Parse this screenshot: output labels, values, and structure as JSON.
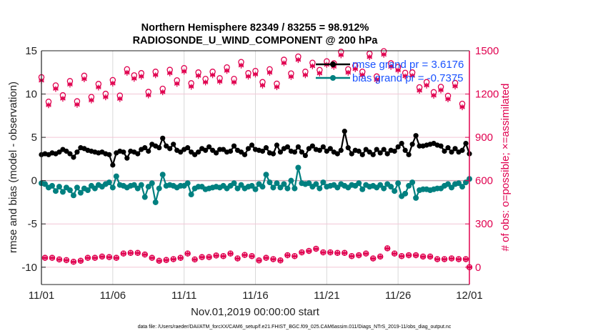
{
  "chart_data": {
    "type": "line",
    "title": [
      "Northern Hemisphere 82349 / 83255 = 98.912%",
      "RADIOSONDE_U_WIND_COMPONENT @ 200 hPa"
    ],
    "xlabel": "Nov.01,2019 00:00:00 start",
    "ylabel": "rmse and bias (model - observation)",
    "ylabel_right": "# of obs: o=possible; ×=assimilated",
    "x_start": "2019-11-01 00:00",
    "time_step": "6 hours",
    "x_ticks": [
      "11/01",
      "11/06",
      "11/11",
      "11/16",
      "11/21",
      "11/26",
      "12/01"
    ],
    "ylim": [
      -12,
      15
    ],
    "y_ticks": [
      -10,
      -5,
      0,
      5,
      10,
      15
    ],
    "ylim_right": [
      -120,
      1500
    ],
    "y_ticks_right": [
      0,
      300,
      600,
      900,
      1200,
      1500
    ],
    "grid": true,
    "legend_placement": "top-right",
    "colors": {
      "rmse": "#000000",
      "bias": "#008080",
      "obs": "#e0004f",
      "legend_text": "#1a53ff",
      "right_axis": "#e0004f"
    },
    "series": [
      {
        "name": "rmse grand pr = 3.6176",
        "axis": "left",
        "marker": "star",
        "values": [
          3.0,
          3.1,
          3.0,
          3.2,
          3.1,
          3.3,
          3.6,
          3.4,
          3.1,
          2.7,
          3.3,
          3.8,
          3.7,
          3.5,
          3.4,
          3.3,
          3.2,
          3.3,
          3.1,
          3.0,
          1.8,
          3.2,
          3.4,
          3.3,
          2.6,
          3.4,
          3.3,
          3.1,
          3.6,
          3.8,
          3.4,
          4.2,
          4.0,
          3.8,
          4.9,
          4.0,
          3.7,
          4.2,
          3.5,
          3.3,
          3.6,
          3.8,
          3.3,
          3.0,
          3.3,
          3.7,
          3.5,
          3.9,
          3.5,
          3.2,
          3.6,
          3.6,
          3.3,
          3.4,
          4.0,
          3.5,
          3.3,
          3.0,
          3.7,
          4.1,
          3.6,
          3.5,
          3.4,
          3.8,
          3.2,
          3.1,
          4.1,
          3.3,
          3.7,
          3.9,
          3.4,
          3.3,
          3.9,
          3.3,
          2.9,
          3.7,
          4.0,
          3.6,
          3.5,
          3.9,
          3.4,
          3.7,
          3.3,
          3.1,
          3.5,
          5.7,
          3.8,
          3.1,
          3.5,
          3.4,
          3.0,
          3.6,
          3.3,
          3.0,
          3.6,
          3.2,
          3.6,
          3.1,
          3.5,
          3.4,
          3.9,
          4.3,
          3.5,
          3.0,
          4.2,
          5.2,
          4.0,
          4.0,
          4.1,
          4.2,
          4.3,
          4.1,
          4.0,
          3.4,
          3.8,
          3.3,
          3.7,
          3.3,
          3.5,
          4.3,
          3.1
        ]
      },
      {
        "name": "bias grand pr = -0.7375",
        "axis": "left",
        "marker": "dot",
        "values": [
          -0.3,
          -0.4,
          -0.8,
          -0.6,
          -1.2,
          -0.7,
          -1.3,
          -0.8,
          -1.1,
          -1.7,
          -0.8,
          -1.4,
          -0.9,
          -1.1,
          -0.6,
          -0.9,
          -0.5,
          -0.7,
          -0.4,
          -0.2,
          -0.8,
          0.5,
          -0.5,
          -0.6,
          -0.8,
          -0.6,
          -0.5,
          -0.9,
          -0.5,
          -1.9,
          -0.7,
          -0.3,
          -2.5,
          -0.9,
          0.7,
          -0.6,
          -0.5,
          -0.6,
          -0.8,
          -0.6,
          -0.6,
          -0.3,
          -1.6,
          -0.9,
          -0.7,
          -0.7,
          -1.0,
          -0.9,
          -0.8,
          -0.7,
          -0.8,
          -0.6,
          -0.9,
          -0.6,
          -0.3,
          -0.9,
          -0.5,
          -0.9,
          -0.7,
          -0.6,
          -1.0,
          -0.4,
          -0.7,
          0.7,
          -0.2,
          -0.8,
          -0.3,
          -0.8,
          -0.4,
          -0.9,
          0.0,
          -0.9,
          1.5,
          -0.3,
          -0.4,
          -0.3,
          -0.7,
          -0.4,
          -0.9,
          -0.2,
          -0.7,
          -0.6,
          -0.5,
          -0.8,
          -0.4,
          -0.6,
          -0.8,
          -0.5,
          -0.6,
          -0.3,
          -1.0,
          -0.5,
          -0.7,
          -0.6,
          -0.8,
          -0.5,
          -0.9,
          -0.4,
          -0.7,
          -1.2,
          -0.3,
          -1.8,
          -1.5,
          -0.6,
          -0.2,
          -2.0,
          -1.1,
          -1.0,
          -1.0,
          -1.1,
          -1.0,
          -0.9,
          -0.9,
          -0.6,
          -0.4,
          -0.8,
          -0.4,
          -0.3,
          -0.7,
          -0.2,
          0.2
        ]
      },
      {
        "name": "possible",
        "axis": "right",
        "marker": "circle",
        "values_00z_12z": [
          1317,
          1147,
          1260,
          1192,
          1290,
          1150,
          1327,
          1180,
          1270,
          1202,
          1297,
          1190,
          1372,
          1330,
          1345,
          1215,
          1355,
          1237,
          1368,
          1295,
          1380,
          1275,
          1350,
          1305,
          1355,
          1310,
          1385,
          1305,
          1422,
          1345,
          1360,
          1283,
          1372,
          1272,
          1438,
          1343,
          1460,
          1355,
          1417,
          1367,
          1427,
          1413,
          1493,
          1372,
          1397,
          1355,
          1480,
          1322,
          1497,
          1413,
          1388,
          1347,
          1350,
          1247,
          1283,
          1213,
          1250,
          1188,
          1277,
          1133
        ],
        "values_06z_18z": [
          65,
          65,
          54,
          49,
          38,
          45,
          65,
          65,
          74,
          70,
          65,
          95,
          99,
          99,
          88,
          65,
          45,
          50,
          56,
          65,
          95,
          54,
          70,
          70,
          81,
          77,
          95,
          61,
          85,
          77,
          47,
          65,
          56,
          47,
          83,
          77,
          103,
          113,
          128,
          103,
          103,
          99,
          99,
          77,
          83,
          95,
          61,
          74,
          131,
          95,
          77,
          83,
          83,
          74,
          74,
          56,
          56,
          61,
          56,
          56
        ],
        "value_final": 0
      },
      {
        "name": "assimilated",
        "axis": "right",
        "marker": "asterisk",
        "values_00z_12z": [
          1292,
          1122,
          1235,
          1167,
          1265,
          1125,
          1302,
          1155,
          1245,
          1177,
          1272,
          1165,
          1347,
          1305,
          1320,
          1190,
          1330,
          1212,
          1343,
          1270,
          1355,
          1250,
          1325,
          1280,
          1330,
          1285,
          1360,
          1280,
          1397,
          1320,
          1335,
          1258,
          1347,
          1247,
          1413,
          1318,
          1435,
          1330,
          1392,
          1342,
          1402,
          1388,
          1468,
          1347,
          1372,
          1330,
          1455,
          1297,
          1472,
          1388,
          1363,
          1322,
          1325,
          1222,
          1258,
          1188,
          1225,
          1163,
          1252,
          1108
        ],
        "values_06z_18z": [
          64,
          64,
          53,
          48,
          37,
          44,
          64,
          64,
          73,
          69,
          64,
          94,
          98,
          98,
          87,
          64,
          44,
          49,
          55,
          64,
          94,
          53,
          69,
          69,
          80,
          76,
          94,
          60,
          84,
          76,
          46,
          64,
          55,
          46,
          82,
          76,
          102,
          112,
          127,
          102,
          102,
          98,
          98,
          76,
          82,
          94,
          60,
          73,
          130,
          94,
          76,
          82,
          82,
          73,
          73,
          55,
          55,
          60,
          55,
          55
        ],
        "value_final": 0
      }
    ],
    "footer": "data file: /Users/raeder/DAI/ATM_forcXX/CAM6_setup/f.e21.FHIST_BGC.f09_025.CAM6assim.011/Diags_NTrS_2019-11/obs_diag_output.nc"
  }
}
